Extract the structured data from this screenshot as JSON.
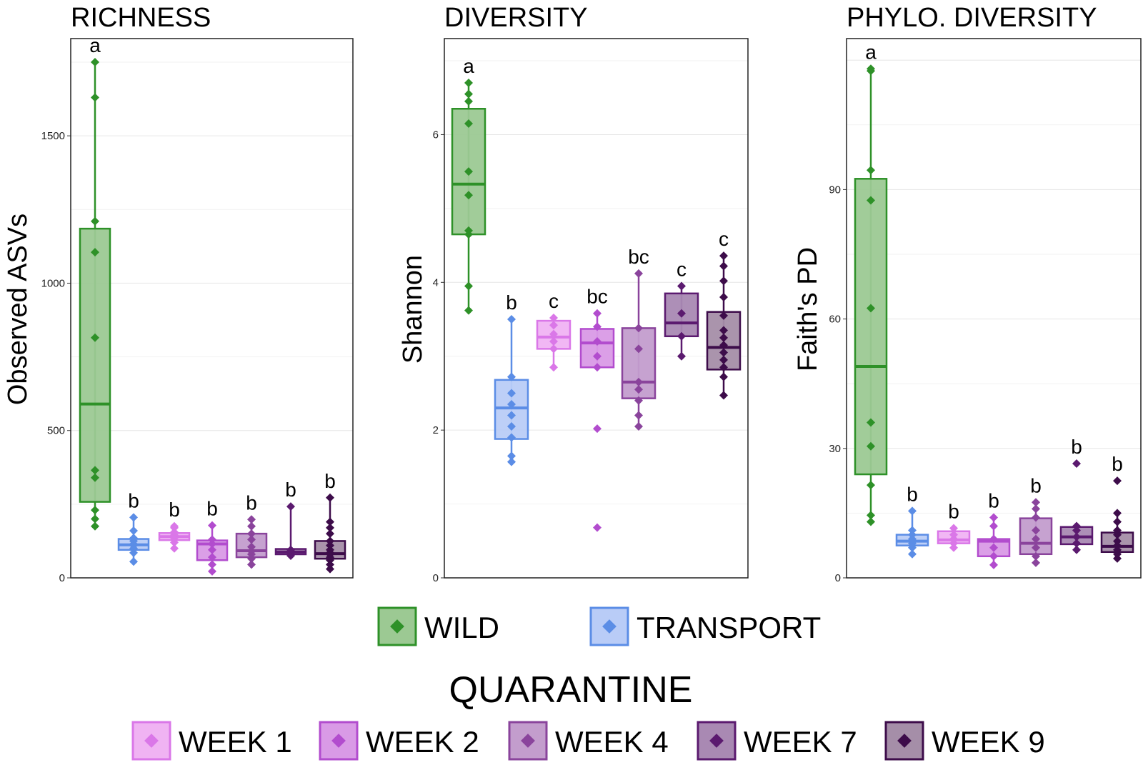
{
  "chart_data": [
    {
      "type": "box",
      "title": "RICHNESS",
      "ylabel": "Observed ASVs",
      "ylim": [
        0,
        1830
      ],
      "yticks": [
        0,
        500,
        1000,
        1500
      ],
      "groups": [
        {
          "name": "WILD",
          "q1": 258,
          "median": 590,
          "q3": 1185,
          "whisker_low": 175,
          "whisker_high": 1750,
          "letter": "a",
          "points": [
            175,
            200,
            230,
            340,
            365,
            815,
            1105,
            1210,
            1630,
            1750
          ]
        },
        {
          "name": "TRANSPORT",
          "q1": 95,
          "median": 112,
          "q3": 132,
          "whisker_low": 55,
          "whisker_high": 205,
          "letter": "b",
          "points": [
            55,
            85,
            100,
            110,
            115,
            125,
            135,
            160,
            205
          ]
        },
        {
          "name": "WEEK 1",
          "q1": 128,
          "median": 140,
          "q3": 152,
          "whisker_low": 100,
          "whisker_high": 175,
          "letter": "b",
          "points": [
            100,
            120,
            135,
            145,
            155,
            170,
            175
          ]
        },
        {
          "name": "WEEK 2",
          "q1": 60,
          "median": 115,
          "q3": 127,
          "whisker_low": 22,
          "whisker_high": 178,
          "letter": "b",
          "points": [
            22,
            45,
            70,
            95,
            115,
            130,
            178
          ]
        },
        {
          "name": "WEEK 4",
          "q1": 70,
          "median": 92,
          "q3": 150,
          "whisker_low": 45,
          "whisker_high": 198,
          "letter": "b",
          "points": [
            45,
            65,
            80,
            90,
            105,
            130,
            150,
            175,
            198
          ]
        },
        {
          "name": "WEEK 7",
          "q1": 80,
          "median": 88,
          "q3": 98,
          "whisker_low": 75,
          "whisker_high": 242,
          "letter": "b",
          "points": [
            75,
            85,
            90,
            95,
            242
          ]
        },
        {
          "name": "WEEK 9",
          "q1": 65,
          "median": 82,
          "q3": 125,
          "whisker_low": 30,
          "whisker_high": 272,
          "letter": "b",
          "points": [
            30,
            45,
            60,
            70,
            80,
            85,
            95,
            110,
            125,
            150,
            170,
            190,
            272
          ]
        }
      ]
    },
    {
      "type": "box",
      "title": "DIVERSITY",
      "ylabel": "Shannon",
      "ylim": [
        0,
        7.3
      ],
      "yticks": [
        0,
        2,
        4,
        6
      ],
      "groups": [
        {
          "name": "WILD",
          "q1": 4.65,
          "median": 5.33,
          "q3": 6.35,
          "whisker_low": 3.62,
          "whisker_high": 6.7,
          "letter": "a",
          "points": [
            3.62,
            3.95,
            4.65,
            4.7,
            5.18,
            5.5,
            6.15,
            6.45,
            6.55,
            6.7
          ]
        },
        {
          "name": "TRANSPORT",
          "q1": 1.88,
          "median": 2.3,
          "q3": 2.68,
          "whisker_low": 1.57,
          "whisker_high": 3.5,
          "letter": "b",
          "points": [
            1.57,
            1.65,
            1.9,
            2.05,
            2.2,
            2.35,
            2.5,
            2.72,
            3.5
          ]
        },
        {
          "name": "WEEK 1",
          "q1": 3.1,
          "median": 3.26,
          "q3": 3.48,
          "whisker_low": 2.85,
          "whisker_high": 3.52,
          "letter": "c",
          "points": [
            2.85,
            3.1,
            3.2,
            3.3,
            3.42,
            3.52
          ]
        },
        {
          "name": "WEEK 2",
          "q1": 2.85,
          "median": 3.18,
          "q3": 3.37,
          "whisker_low": 2.85,
          "whisker_high": 3.58,
          "letter": "bc",
          "points": [
            0.68,
            2.02,
            2.85,
            3.0,
            3.2,
            3.4,
            3.58
          ]
        },
        {
          "name": "WEEK 4",
          "q1": 2.43,
          "median": 2.65,
          "q3": 3.38,
          "whisker_low": 2.05,
          "whisker_high": 4.12,
          "letter": "bc",
          "points": [
            2.05,
            2.2,
            2.4,
            2.55,
            2.65,
            3.1,
            3.38,
            4.12
          ]
        },
        {
          "name": "WEEK 7",
          "q1": 3.27,
          "median": 3.45,
          "q3": 3.85,
          "whisker_low": 3.0,
          "whisker_high": 3.95,
          "letter": "c",
          "points": [
            3.0,
            3.27,
            3.58,
            3.95
          ]
        },
        {
          "name": "WEEK 9",
          "q1": 2.82,
          "median": 3.12,
          "q3": 3.6,
          "whisker_low": 2.47,
          "whisker_high": 4.36,
          "letter": "c",
          "points": [
            2.47,
            2.72,
            2.85,
            2.95,
            3.05,
            3.15,
            3.25,
            3.35,
            3.55,
            3.8,
            4.02,
            4.22,
            4.36
          ]
        }
      ]
    },
    {
      "type": "box",
      "title": "PHYLO. DIVERSITY",
      "ylabel": "Faith's PD",
      "ylim": [
        0,
        125
      ],
      "yticks": [
        0,
        30,
        60,
        90
      ],
      "groups": [
        {
          "name": "WILD",
          "q1": 24,
          "median": 49,
          "q3": 92.5,
          "whisker_low": 13,
          "whisker_high": 118,
          "letter": "a",
          "points": [
            13,
            14.5,
            21.5,
            30.5,
            36,
            62.5,
            87.5,
            94.5,
            117.5,
            118
          ]
        },
        {
          "name": "TRANSPORT",
          "q1": 7.5,
          "median": 8.5,
          "q3": 10,
          "whisker_low": 5.5,
          "whisker_high": 15.5,
          "letter": "b",
          "points": [
            5.5,
            7,
            8,
            9,
            10,
            11,
            15.5
          ]
        },
        {
          "name": "WEEK 1",
          "q1": 8,
          "median": 8.8,
          "q3": 10.8,
          "whisker_low": 7,
          "whisker_high": 11.5,
          "letter": "b",
          "points": [
            7,
            8,
            9,
            10,
            11.5
          ]
        },
        {
          "name": "WEEK 2",
          "q1": 5,
          "median": 8.5,
          "q3": 9,
          "whisker_low": 3,
          "whisker_high": 14,
          "letter": "b",
          "points": [
            3,
            5,
            7,
            9,
            12,
            14
          ]
        },
        {
          "name": "WEEK 4",
          "q1": 5.5,
          "median": 8,
          "q3": 13.8,
          "whisker_low": 3.5,
          "whisker_high": 17.5,
          "letter": "b",
          "points": [
            3.5,
            5,
            7,
            9,
            11,
            14,
            16,
            17.5
          ]
        },
        {
          "name": "WEEK 7",
          "q1": 7.8,
          "median": 9.5,
          "q3": 11.8,
          "whisker_low": 6.5,
          "whisker_high": 12,
          "letter": "b",
          "points": [
            6.5,
            8,
            9.5,
            11,
            12,
            26.5
          ]
        },
        {
          "name": "WEEK 9",
          "q1": 6,
          "median": 7.3,
          "q3": 10.5,
          "whisker_low": 4.5,
          "whisker_high": 15,
          "letter": "b",
          "points": [
            4.5,
            5.5,
            6.5,
            7.5,
            8.5,
            10,
            11,
            13,
            15,
            22.5
          ]
        }
      ]
    }
  ],
  "series_styles": {
    "WILD": {
      "fill": "#9cc993",
      "edge": "#2e9128"
    },
    "TRANSPORT": {
      "fill": "#b9ccf7",
      "edge": "#5b8de6"
    },
    "WEEK 1": {
      "fill": "#f0b3f3",
      "edge": "#da77e8"
    },
    "WEEK 2": {
      "fill": "#d99ae6",
      "edge": "#b24cce"
    },
    "WEEK 4": {
      "fill": "#c39dcd",
      "edge": "#8a449c"
    },
    "WEEK 7": {
      "fill": "#a989b3",
      "edge": "#5b1a6f"
    },
    "WEEK 9": {
      "fill": "#a58ea8",
      "edge": "#3d0c4a"
    }
  },
  "legend": {
    "top_items": [
      "WILD",
      "TRANSPORT"
    ],
    "quarantine_title": "QUARANTINE",
    "bottom_items": [
      "WEEK 1",
      "WEEK 2",
      "WEEK 4",
      "WEEK 7",
      "WEEK 9"
    ]
  }
}
